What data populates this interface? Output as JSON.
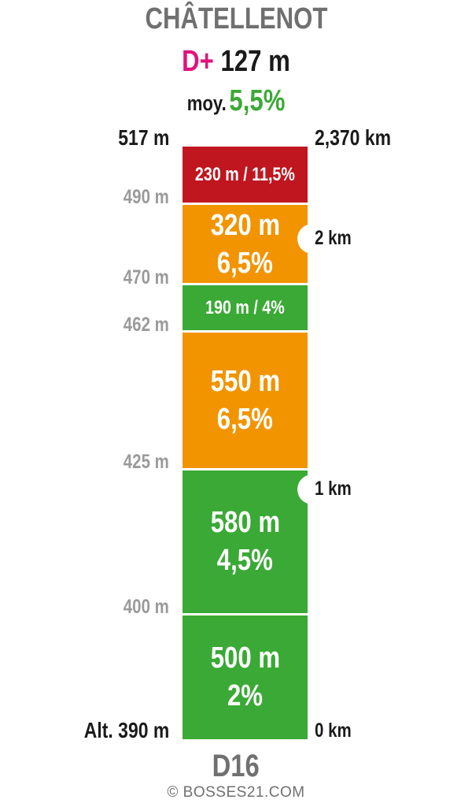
{
  "header": {
    "title": "CHÂTELLENOT",
    "dplus_label": "D+",
    "dplus_value": "127 m",
    "avg_label": "moy.",
    "avg_value": "5,5%"
  },
  "colors": {
    "red": "#c0161f",
    "orange": "#f29400",
    "green": "#3aa935",
    "magenta": "#e0137d",
    "grey": "#707070"
  },
  "chart_data": {
    "type": "bar",
    "title": "CHÂTELLENOT",
    "road": "D16",
    "total_distance_km": 2.37,
    "elevation_gain_m": 127,
    "average_grade_pct": 5.5,
    "segments": [
      {
        "length_m": 500,
        "grade_pct": 2,
        "color": "green",
        "label_line1": "500 m",
        "label_line2": "2%"
      },
      {
        "length_m": 580,
        "grade_pct": 4.5,
        "color": "green",
        "label_line1": "580 m",
        "label_line2": "4,5%"
      },
      {
        "length_m": 550,
        "grade_pct": 6.5,
        "color": "orange",
        "label_line1": "550 m",
        "label_line2": "6,5%"
      },
      {
        "length_m": 190,
        "grade_pct": 4,
        "color": "green",
        "label_line1": "190 m / 4%",
        "label_line2": ""
      },
      {
        "length_m": 320,
        "grade_pct": 6.5,
        "color": "orange",
        "label_line1": "320 m",
        "label_line2": "6,5%"
      },
      {
        "length_m": 230,
        "grade_pct": 11.5,
        "color": "red",
        "label_line1": "230 m / 11,5%",
        "label_line2": ""
      }
    ],
    "altitude_labels": [
      "Alt. 390 m",
      "400 m",
      "425 m",
      "462 m",
      "470 m",
      "490 m",
      "517 m"
    ],
    "distance_markers": [
      {
        "km": 0,
        "label": "0 km"
      },
      {
        "km": 1,
        "label": "1 km"
      },
      {
        "km": 2,
        "label": "2 km"
      },
      {
        "km": 2.37,
        "label": "2,370 km"
      }
    ]
  },
  "footer": {
    "road": "D16",
    "copyright": "© BOSSES21.COM"
  }
}
